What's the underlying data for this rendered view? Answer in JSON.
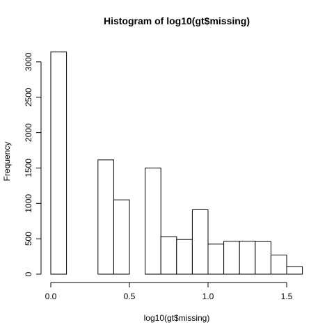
{
  "chart_data": {
    "type": "bar",
    "title": "Histogram of log10(gt$missing)",
    "xlabel": "log10(gt$missing)",
    "ylabel": "Frequency",
    "xlim": [
      0,
      1.6
    ],
    "ylim": [
      0,
      3150
    ],
    "x_ticks": [
      0.0,
      0.5,
      1.0,
      1.5
    ],
    "x_tick_labels": [
      "0.0",
      "0.5",
      "1.0",
      "1.5"
    ],
    "y_ticks": [
      0,
      500,
      1000,
      1500,
      2000,
      2500,
      3000
    ],
    "y_tick_labels": [
      "0",
      "500",
      "1000",
      "1500",
      "2000",
      "2500",
      "3000"
    ],
    "bin_width": 0.1,
    "bins": [
      {
        "x0": 0.0,
        "x1": 0.1,
        "value": 3140
      },
      {
        "x0": 0.1,
        "x1": 0.2,
        "value": 0
      },
      {
        "x0": 0.2,
        "x1": 0.3,
        "value": 0
      },
      {
        "x0": 0.3,
        "x1": 0.4,
        "value": 1615
      },
      {
        "x0": 0.4,
        "x1": 0.5,
        "value": 1050
      },
      {
        "x0": 0.5,
        "x1": 0.6,
        "value": 0
      },
      {
        "x0": 0.6,
        "x1": 0.7,
        "value": 1500
      },
      {
        "x0": 0.7,
        "x1": 0.8,
        "value": 530
      },
      {
        "x0": 0.8,
        "x1": 0.9,
        "value": 490
      },
      {
        "x0": 0.9,
        "x1": 1.0,
        "value": 910
      },
      {
        "x0": 1.0,
        "x1": 1.1,
        "value": 425
      },
      {
        "x0": 1.1,
        "x1": 1.2,
        "value": 465
      },
      {
        "x0": 1.2,
        "x1": 1.3,
        "value": 465
      },
      {
        "x0": 1.3,
        "x1": 1.4,
        "value": 460
      },
      {
        "x0": 1.4,
        "x1": 1.5,
        "value": 270
      },
      {
        "x0": 1.5,
        "x1": 1.6,
        "value": 105
      }
    ],
    "grid": false,
    "bar_fill": "#ffffff",
    "bar_stroke": "#000000"
  }
}
